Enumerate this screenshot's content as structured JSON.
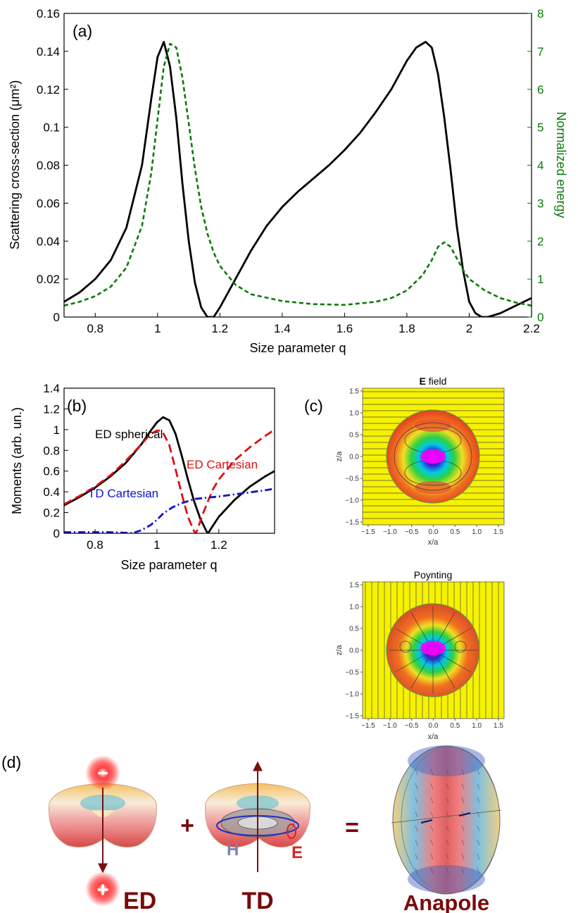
{
  "chart_data": [
    {
      "id": "a",
      "type": "line",
      "panel_label": "(a)",
      "xlabel": "Size parameter q",
      "ylabel": "Scattering cross-section (μm²)",
      "ylabel_right": "Normalized energy",
      "xlim": [
        0.7,
        2.2
      ],
      "ylim": [
        0,
        0.16
      ],
      "ylim_right": [
        0,
        8
      ],
      "xticks": [
        "0.8",
        "1",
        "1.2",
        "1.4",
        "1.6",
        "1.8",
        "2",
        "2.2"
      ],
      "yticks": [
        "0",
        "0.02",
        "0.04",
        "0.06",
        "0.08",
        "0.1",
        "0.12",
        "0.14",
        "0.16"
      ],
      "yticks_right": [
        "0",
        "1",
        "2",
        "3",
        "4",
        "5",
        "6",
        "7",
        "8"
      ],
      "series": [
        {
          "name": "Scattering cross-section",
          "axis": "left",
          "color": "#000000",
          "style": "solid",
          "x": [
            0.7,
            0.75,
            0.8,
            0.85,
            0.9,
            0.95,
            0.98,
            1.0,
            1.02,
            1.04,
            1.06,
            1.08,
            1.1,
            1.12,
            1.14,
            1.16,
            1.18,
            1.2,
            1.25,
            1.3,
            1.35,
            1.4,
            1.45,
            1.5,
            1.55,
            1.6,
            1.65,
            1.7,
            1.75,
            1.8,
            1.83,
            1.86,
            1.88,
            1.9,
            1.92,
            1.94,
            1.96,
            1.98,
            2.0,
            2.02,
            2.04,
            2.06,
            2.1,
            2.15,
            2.2
          ],
          "y": [
            0.008,
            0.013,
            0.02,
            0.03,
            0.047,
            0.08,
            0.115,
            0.137,
            0.145,
            0.132,
            0.105,
            0.07,
            0.04,
            0.018,
            0.005,
            0.0,
            0.0,
            0.005,
            0.02,
            0.035,
            0.048,
            0.058,
            0.066,
            0.073,
            0.08,
            0.088,
            0.097,
            0.108,
            0.12,
            0.135,
            0.142,
            0.145,
            0.142,
            0.128,
            0.105,
            0.078,
            0.048,
            0.025,
            0.008,
            0.002,
            0.0,
            0.0,
            0.002,
            0.006,
            0.01
          ]
        },
        {
          "name": "Normalized energy",
          "axis": "right",
          "color": "#0a7a0a",
          "style": "dotted",
          "x": [
            0.7,
            0.75,
            0.8,
            0.85,
            0.9,
            0.95,
            0.98,
            1.0,
            1.02,
            1.04,
            1.06,
            1.08,
            1.1,
            1.12,
            1.14,
            1.16,
            1.18,
            1.2,
            1.25,
            1.3,
            1.4,
            1.5,
            1.6,
            1.7,
            1.75,
            1.8,
            1.85,
            1.88,
            1.9,
            1.92,
            1.94,
            1.96,
            1.98,
            2.0,
            2.05,
            2.1,
            2.15,
            2.2
          ],
          "y": [
            0.3,
            0.4,
            0.55,
            0.8,
            1.3,
            2.4,
            3.8,
            5.2,
            6.6,
            7.2,
            7.1,
            6.3,
            5.1,
            3.9,
            2.9,
            2.2,
            1.7,
            1.35,
            0.85,
            0.6,
            0.42,
            0.34,
            0.32,
            0.4,
            0.5,
            0.7,
            1.1,
            1.5,
            1.85,
            1.97,
            1.85,
            1.55,
            1.25,
            1.0,
            0.7,
            0.5,
            0.38,
            0.3
          ]
        }
      ]
    },
    {
      "id": "b",
      "type": "line",
      "panel_label": "(b)",
      "xlabel": "Size parameter q",
      "ylabel": "Moments (arb. un.)",
      "xlim": [
        0.7,
        1.38
      ],
      "ylim": [
        0,
        1.4
      ],
      "xticks": [
        "0.8",
        "1",
        "1.2"
      ],
      "yticks": [
        "0",
        "0.2",
        "0.4",
        "0.6",
        "0.8",
        "1",
        "1.2",
        "1.4"
      ],
      "annotations": [
        "ED spherical",
        "ED Cartesian",
        "TD Cartesian"
      ],
      "series": [
        {
          "name": "ED spherical",
          "color": "#000000",
          "style": "solid",
          "x": [
            0.7,
            0.75,
            0.8,
            0.85,
            0.9,
            0.95,
            0.98,
            1.0,
            1.02,
            1.04,
            1.06,
            1.08,
            1.1,
            1.12,
            1.14,
            1.16,
            1.165,
            1.18,
            1.2,
            1.25,
            1.3,
            1.35,
            1.38
          ],
          "y": [
            0.27,
            0.35,
            0.44,
            0.55,
            0.68,
            0.86,
            0.99,
            1.07,
            1.12,
            1.09,
            0.96,
            0.75,
            0.52,
            0.31,
            0.14,
            0.02,
            0.0,
            0.07,
            0.16,
            0.32,
            0.45,
            0.55,
            0.6
          ]
        },
        {
          "name": "ED Cartesian",
          "color": "#dd1111",
          "style": "dashed",
          "x": [
            0.7,
            0.75,
            0.8,
            0.85,
            0.9,
            0.95,
            0.98,
            1.0,
            1.01,
            1.02,
            1.04,
            1.06,
            1.08,
            1.1,
            1.12,
            1.125,
            1.13,
            1.15,
            1.18,
            1.2,
            1.25,
            1.3,
            1.35,
            1.38
          ],
          "y": [
            0.28,
            0.36,
            0.45,
            0.56,
            0.7,
            0.86,
            0.96,
            0.99,
            0.99,
            0.97,
            0.85,
            0.62,
            0.38,
            0.16,
            0.02,
            0.0,
            0.03,
            0.2,
            0.42,
            0.52,
            0.7,
            0.83,
            0.94,
            1.0
          ]
        },
        {
          "name": "TD Cartesian",
          "color": "#1111cc",
          "style": "dashdot",
          "x": [
            0.7,
            0.8,
            0.85,
            0.9,
            0.92,
            0.95,
            0.98,
            1.0,
            1.02,
            1.05,
            1.08,
            1.1,
            1.12,
            1.15,
            1.2,
            1.25,
            1.3,
            1.35,
            1.38
          ],
          "y": [
            0.01,
            0.01,
            0.01,
            0.005,
            0.0,
            0.03,
            0.08,
            0.13,
            0.19,
            0.25,
            0.29,
            0.31,
            0.33,
            0.34,
            0.355,
            0.375,
            0.395,
            0.415,
            0.43
          ]
        }
      ]
    }
  ],
  "panel_c": {
    "label": "(c)",
    "e_title_bold": "E",
    "e_title_rest": " field",
    "p_title": "Poynting",
    "xlabel": "x/a",
    "ylabel": "z/a",
    "xticks": [
      "−1.5",
      "−1.0",
      "−0.5",
      "0.0",
      "0.5",
      "1.0",
      "1.5"
    ],
    "yticks": [
      "1.5",
      "1.0",
      "0.5",
      "0.0",
      "−0.5",
      "−1.0",
      "−1.5"
    ],
    "colors": {
      "background": "#f6f200",
      "sphere_edge": "#e84e2e",
      "core": "#1818d0"
    }
  },
  "panel_d": {
    "label": "(d)",
    "minus": "−",
    "plus_charge": "+",
    "plus_op": "+",
    "equals": "=",
    "h_label": "H",
    "e_label": "E",
    "ed": "ED",
    "td": "TD",
    "anapole": "Anapole",
    "colors": {
      "text": "#7a0a0a",
      "arrow": "#7a1010",
      "glow": "#ff2020"
    }
  }
}
